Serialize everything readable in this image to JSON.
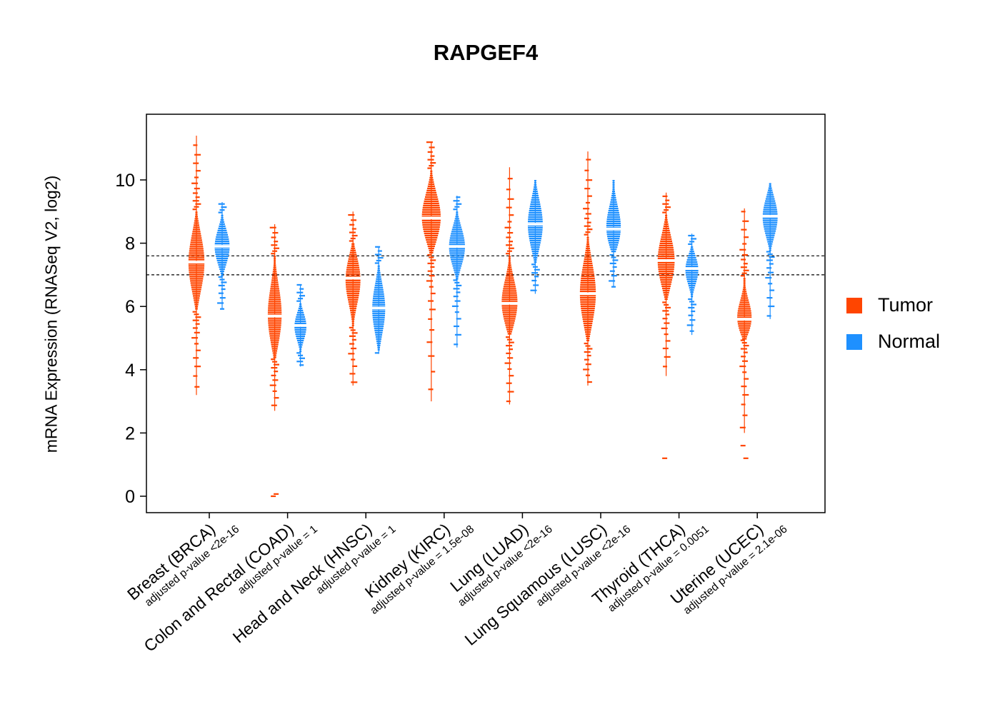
{
  "chart_data": {
    "type": "violin",
    "title": "RAPGEF4",
    "ylabel": "mRNA Expression (RNASeq V2, log2)",
    "xlabel": "",
    "yticks": [
      0,
      2,
      4,
      6,
      8,
      10
    ],
    "ylim": [
      -0.6,
      12.1
    ],
    "reference_lines": [
      7.6,
      7.0
    ],
    "grid": false,
    "legend_position": "right",
    "colors": {
      "tumor": "#FF4500",
      "normal": "#1E90FF"
    },
    "legend": [
      {
        "label": "Tumor",
        "color": "#FF4500"
      },
      {
        "label": "Normal",
        "color": "#1E90FF"
      }
    ],
    "groups": [
      {
        "label": "Breast (BRCA)",
        "pvalue": "adjusted p-value <2e-16",
        "tumor": {
          "median": 7.4,
          "body": [
            5.9,
            9.0
          ],
          "tail": [
            3.2,
            11.4
          ],
          "w": 0.8,
          "points": []
        },
        "normal": {
          "median": 7.9,
          "body": [
            7.0,
            8.9
          ],
          "tail": [
            5.9,
            9.3
          ],
          "w": 0.75,
          "points": []
        }
      },
      {
        "label": "Colon and Rectal (COAD)",
        "pvalue": "adjusted p-value = 1",
        "tumor": {
          "median": 5.7,
          "body": [
            4.4,
            7.6
          ],
          "tail": [
            2.7,
            8.6
          ],
          "w": 0.7,
          "points": [
            0.0,
            0.07
          ]
        },
        "normal": {
          "median": 5.4,
          "body": [
            4.6,
            6.1
          ],
          "tail": [
            4.1,
            6.7
          ],
          "w": 0.6,
          "points": []
        }
      },
      {
        "label": "Head and Neck (HNSC)",
        "pvalue": "adjusted p-value = 1",
        "tumor": {
          "median": 6.9,
          "body": [
            5.4,
            8.0
          ],
          "tail": [
            3.5,
            9.0
          ],
          "w": 0.75,
          "points": []
        },
        "normal": {
          "median": 5.95,
          "body": [
            4.6,
            7.3
          ],
          "tail": [
            4.5,
            7.9
          ],
          "w": 0.65,
          "points": []
        }
      },
      {
        "label": "Kidney (KIRC)",
        "pvalue": "adjusted p-value = 1.5e-08",
        "tumor": {
          "median": 8.8,
          "body": [
            7.7,
            10.3
          ],
          "tail": [
            3.0,
            11.2
          ],
          "w": 0.95,
          "points": []
        },
        "normal": {
          "median": 7.9,
          "body": [
            6.9,
            9.0
          ],
          "tail": [
            4.7,
            9.5
          ],
          "w": 0.8,
          "points": []
        }
      },
      {
        "label": "Lung (LUAD)",
        "pvalue": "adjusted p-value <2e-16",
        "tumor": {
          "median": 6.1,
          "body": [
            5.1,
            7.6
          ],
          "tail": [
            2.9,
            10.4
          ],
          "w": 0.8,
          "points": []
        },
        "normal": {
          "median": 8.6,
          "body": [
            7.4,
            10.0
          ],
          "tail": [
            6.4,
            10.0
          ],
          "w": 0.75,
          "points": []
        }
      },
      {
        "label": "Lung Squamous (LUSC)",
        "pvalue": "adjusted p-value <2e-16",
        "tumor": {
          "median": 6.4,
          "body": [
            4.9,
            8.2
          ],
          "tail": [
            3.5,
            10.9
          ],
          "w": 0.8,
          "points": []
        },
        "normal": {
          "median": 8.45,
          "body": [
            7.7,
            10.0
          ],
          "tail": [
            6.6,
            10.0
          ],
          "w": 0.75,
          "points": []
        }
      },
      {
        "label": "Thyroid (THCA)",
        "pvalue": "adjusted p-value = 0.0051",
        "tumor": {
          "median": 7.45,
          "body": [
            6.2,
            8.9
          ],
          "tail": [
            3.8,
            9.6
          ],
          "w": 0.85,
          "points": [
            1.2
          ]
        },
        "normal": {
          "median": 7.2,
          "body": [
            6.3,
            7.9
          ],
          "tail": [
            5.1,
            8.3
          ],
          "w": 0.65,
          "points": []
        }
      },
      {
        "label": "Uterine (UCEC)",
        "pvalue": "adjusted p-value = 2.1e-06",
        "tumor": {
          "median": 5.6,
          "body": [
            5.0,
            6.9
          ],
          "tail": [
            2.0,
            9.1
          ],
          "w": 0.75,
          "points": [
            1.6,
            1.2
          ]
        },
        "normal": {
          "median": 8.85,
          "body": [
            7.8,
            9.9
          ],
          "tail": [
            5.6,
            9.9
          ],
          "w": 0.75,
          "points": []
        }
      }
    ]
  }
}
